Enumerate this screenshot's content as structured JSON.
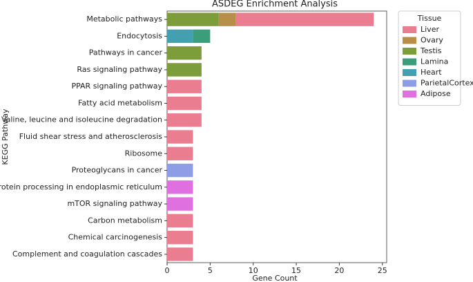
{
  "chart_data": {
    "type": "stacked-barh",
    "title": "ASDEG Enrichment Analysis",
    "xlabel": "Gene Count",
    "ylabel": "KEGG Pathway",
    "categories": [
      "Metabolic pathways",
      "Endocytosis",
      "Pathways in cancer",
      "Ras signaling pathway",
      "PPAR signaling pathway",
      "Fatty acid metabolism",
      "Valine, leucine and isoleucine degradation",
      "Fluid shear stress and atherosclerosis",
      "Ribosome",
      "Proteoglycans in cancer",
      "Protein processing in endoplasmic reticulum",
      "mTOR signaling pathway",
      "Carbon metabolism",
      "Chemical carcinogenesis",
      "Complement and coagulation cascades"
    ],
    "series": [
      {
        "name": "Liver",
        "color": "#ea7d8f",
        "values": [
          16,
          null,
          null,
          null,
          4,
          4,
          4,
          3,
          3,
          null,
          null,
          null,
          3,
          3,
          3
        ]
      },
      {
        "name": "Ovary",
        "color": "#b88f4a",
        "values": [
          2,
          null,
          null,
          null,
          null,
          null,
          null,
          null,
          null,
          null,
          null,
          null,
          null,
          null,
          null
        ]
      },
      {
        "name": "Testis",
        "color": "#7d9c3a",
        "values": [
          6,
          null,
          4,
          4,
          null,
          null,
          null,
          null,
          null,
          null,
          null,
          null,
          null,
          null,
          null
        ]
      },
      {
        "name": "Lamina",
        "color": "#3a9e7a",
        "values": [
          null,
          2,
          null,
          null,
          null,
          null,
          null,
          null,
          null,
          null,
          null,
          null,
          null,
          null,
          null
        ]
      },
      {
        "name": "Heart",
        "color": "#42a0b0",
        "values": [
          null,
          3,
          null,
          null,
          null,
          null,
          null,
          null,
          null,
          null,
          null,
          null,
          null,
          null,
          null
        ]
      },
      {
        "name": "ParietalCortex",
        "color": "#8d9de6",
        "values": [
          null,
          null,
          null,
          null,
          null,
          null,
          null,
          null,
          null,
          3,
          null,
          null,
          null,
          null,
          null
        ]
      },
      {
        "name": "Adipose",
        "color": "#e070e0",
        "values": [
          null,
          null,
          null,
          null,
          null,
          null,
          null,
          null,
          null,
          null,
          3,
          3,
          null,
          null,
          null
        ]
      }
    ],
    "legend_title": "Tissue",
    "legend": "outside-upper-right",
    "xlim": [
      0,
      25.5
    ],
    "xticks": [
      0,
      5,
      10,
      15,
      20,
      25
    ]
  }
}
